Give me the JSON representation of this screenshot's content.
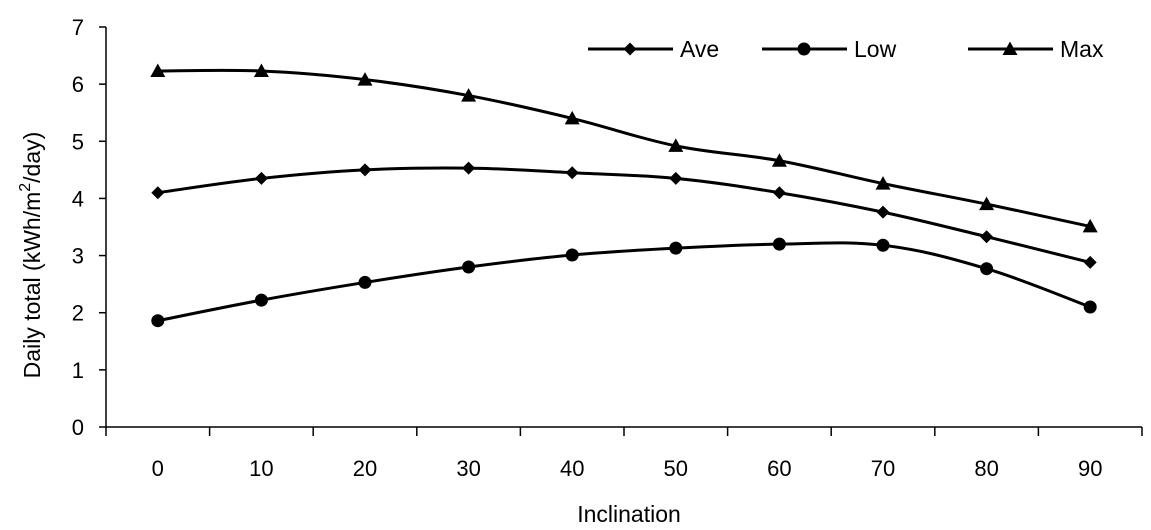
{
  "chart_data": {
    "type": "line",
    "title": "",
    "xlabel": "Inclination",
    "ylabel_main": "Daily total (kWh/m",
    "ylabel_sup": "2",
    "ylabel_tail": "/day)",
    "x": [
      0,
      10,
      20,
      30,
      40,
      50,
      60,
      70,
      80,
      90
    ],
    "ylim": [
      0,
      7
    ],
    "yticks": [
      0,
      1,
      2,
      3,
      4,
      5,
      6,
      7
    ],
    "grid": false,
    "legend": "top-right",
    "series": [
      {
        "name": "Ave",
        "marker": "diamond",
        "values": [
          4.1,
          4.35,
          4.5,
          4.53,
          4.45,
          4.35,
          4.1,
          3.76,
          3.33,
          2.88
        ]
      },
      {
        "name": "Low",
        "marker": "circle",
        "values": [
          1.86,
          2.22,
          2.53,
          2.8,
          3.01,
          3.13,
          3.2,
          3.18,
          2.77,
          2.1
        ]
      },
      {
        "name": "Max",
        "marker": "triangle",
        "values": [
          6.23,
          6.23,
          6.08,
          5.8,
          5.4,
          4.92,
          4.66,
          4.26,
          3.9,
          3.51
        ]
      }
    ]
  }
}
